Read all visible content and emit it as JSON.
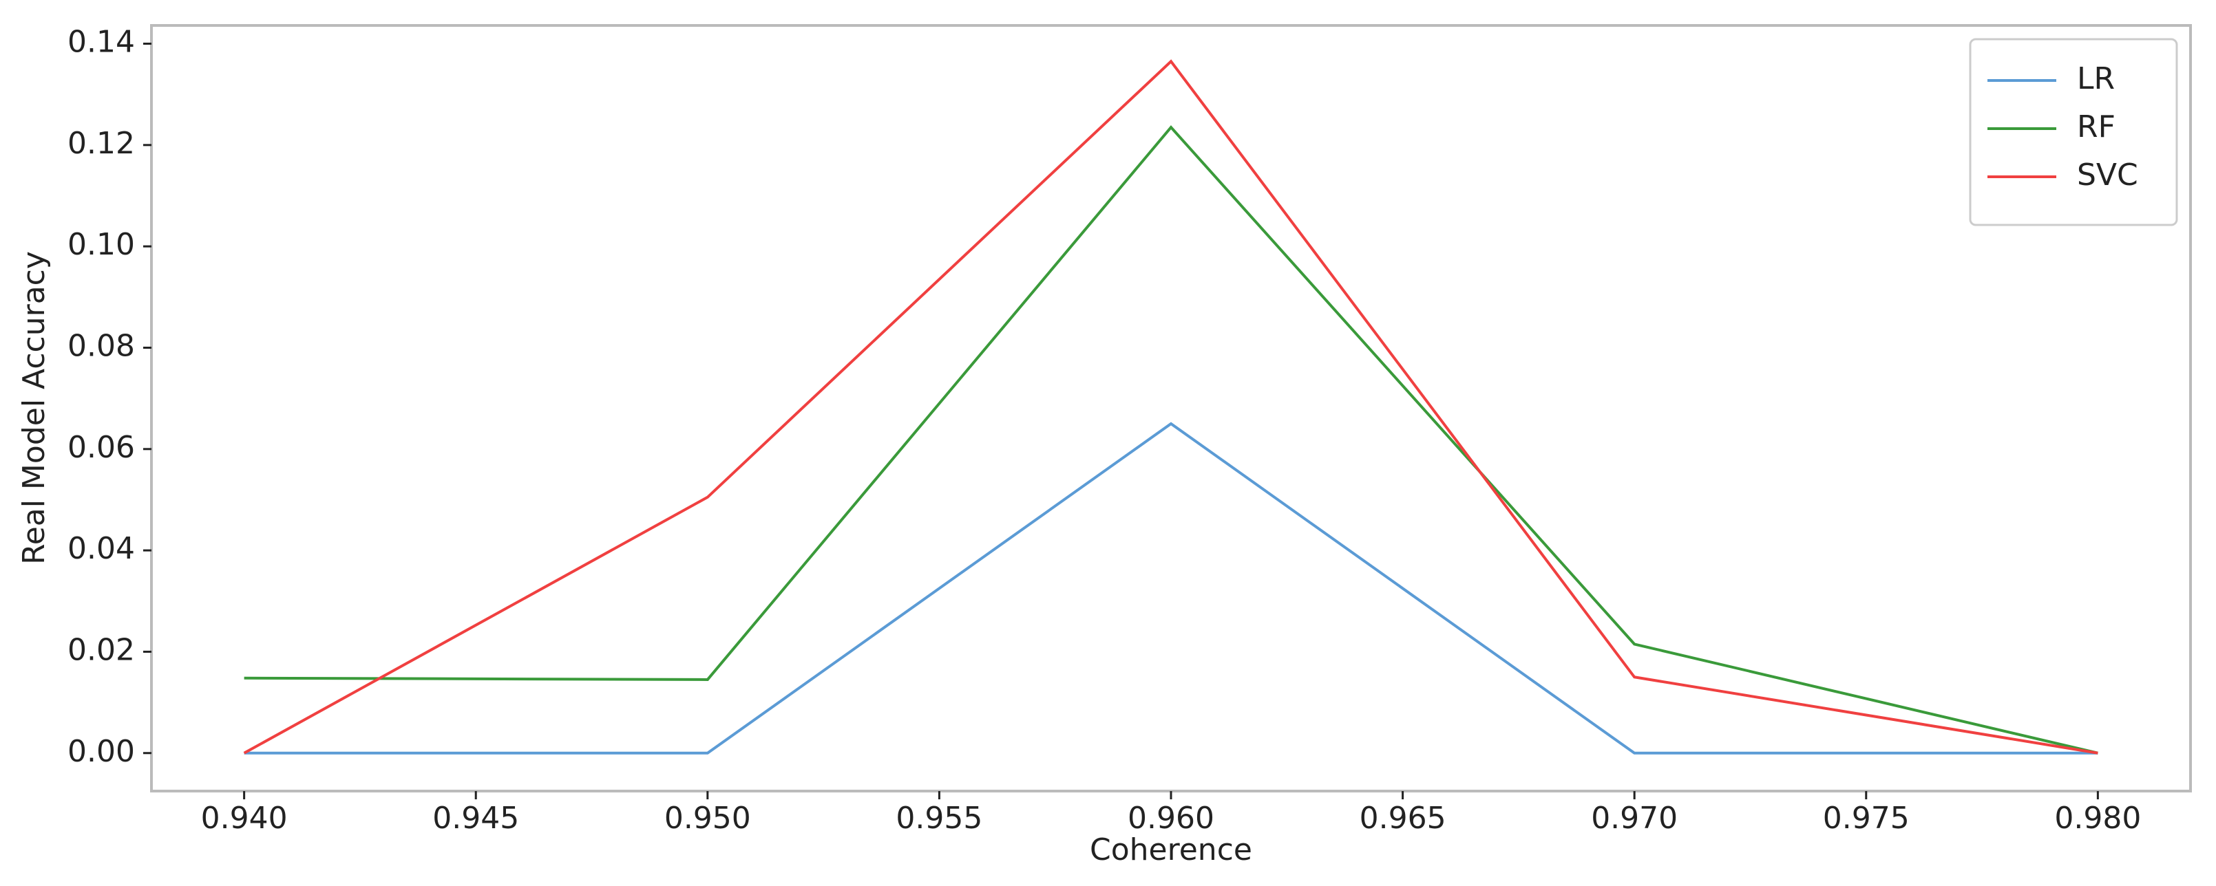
{
  "chart_data": {
    "type": "line",
    "x_label": "Coherence",
    "y_label": "Real Model Accuracy",
    "x": [
      0.94,
      0.95,
      0.96,
      0.97,
      0.98
    ],
    "series": [
      {
        "name": "LR",
        "color": "#5b9bd5",
        "values": [
          0,
          0,
          0.065,
          0,
          0
        ]
      },
      {
        "name": "RF",
        "color": "#3a9a3a",
        "values": [
          0.0148,
          0.0145,
          0.1235,
          0.0215,
          0
        ]
      },
      {
        "name": "SVC",
        "color": "#f04040",
        "values": [
          0,
          0.0505,
          0.1365,
          0.015,
          0
        ]
      }
    ],
    "xlim": [
      0.938,
      0.982
    ],
    "ylim": [
      -0.0075,
      0.1436
    ],
    "xticks": [
      {
        "value": 0.94,
        "label": "0.940"
      },
      {
        "value": 0.945,
        "label": "0.945"
      },
      {
        "value": 0.95,
        "label": "0.950"
      },
      {
        "value": 0.955,
        "label": "0.955"
      },
      {
        "value": 0.96,
        "label": "0.960"
      },
      {
        "value": 0.965,
        "label": "0.965"
      },
      {
        "value": 0.97,
        "label": "0.970"
      },
      {
        "value": 0.975,
        "label": "0.975"
      },
      {
        "value": 0.98,
        "label": "0.980"
      }
    ],
    "yticks": [
      {
        "value": 0,
        "label": "0.00"
      },
      {
        "value": 0.02,
        "label": "0.02"
      },
      {
        "value": 0.04,
        "label": "0.04"
      },
      {
        "value": 0.06,
        "label": "0.06"
      },
      {
        "value": 0.08,
        "label": "0.08"
      },
      {
        "value": 0.1,
        "label": "0.10"
      },
      {
        "value": 0.12,
        "label": "0.12"
      },
      {
        "value": 0.14,
        "label": "0.14"
      }
    ],
    "legend": "upper-right"
  }
}
